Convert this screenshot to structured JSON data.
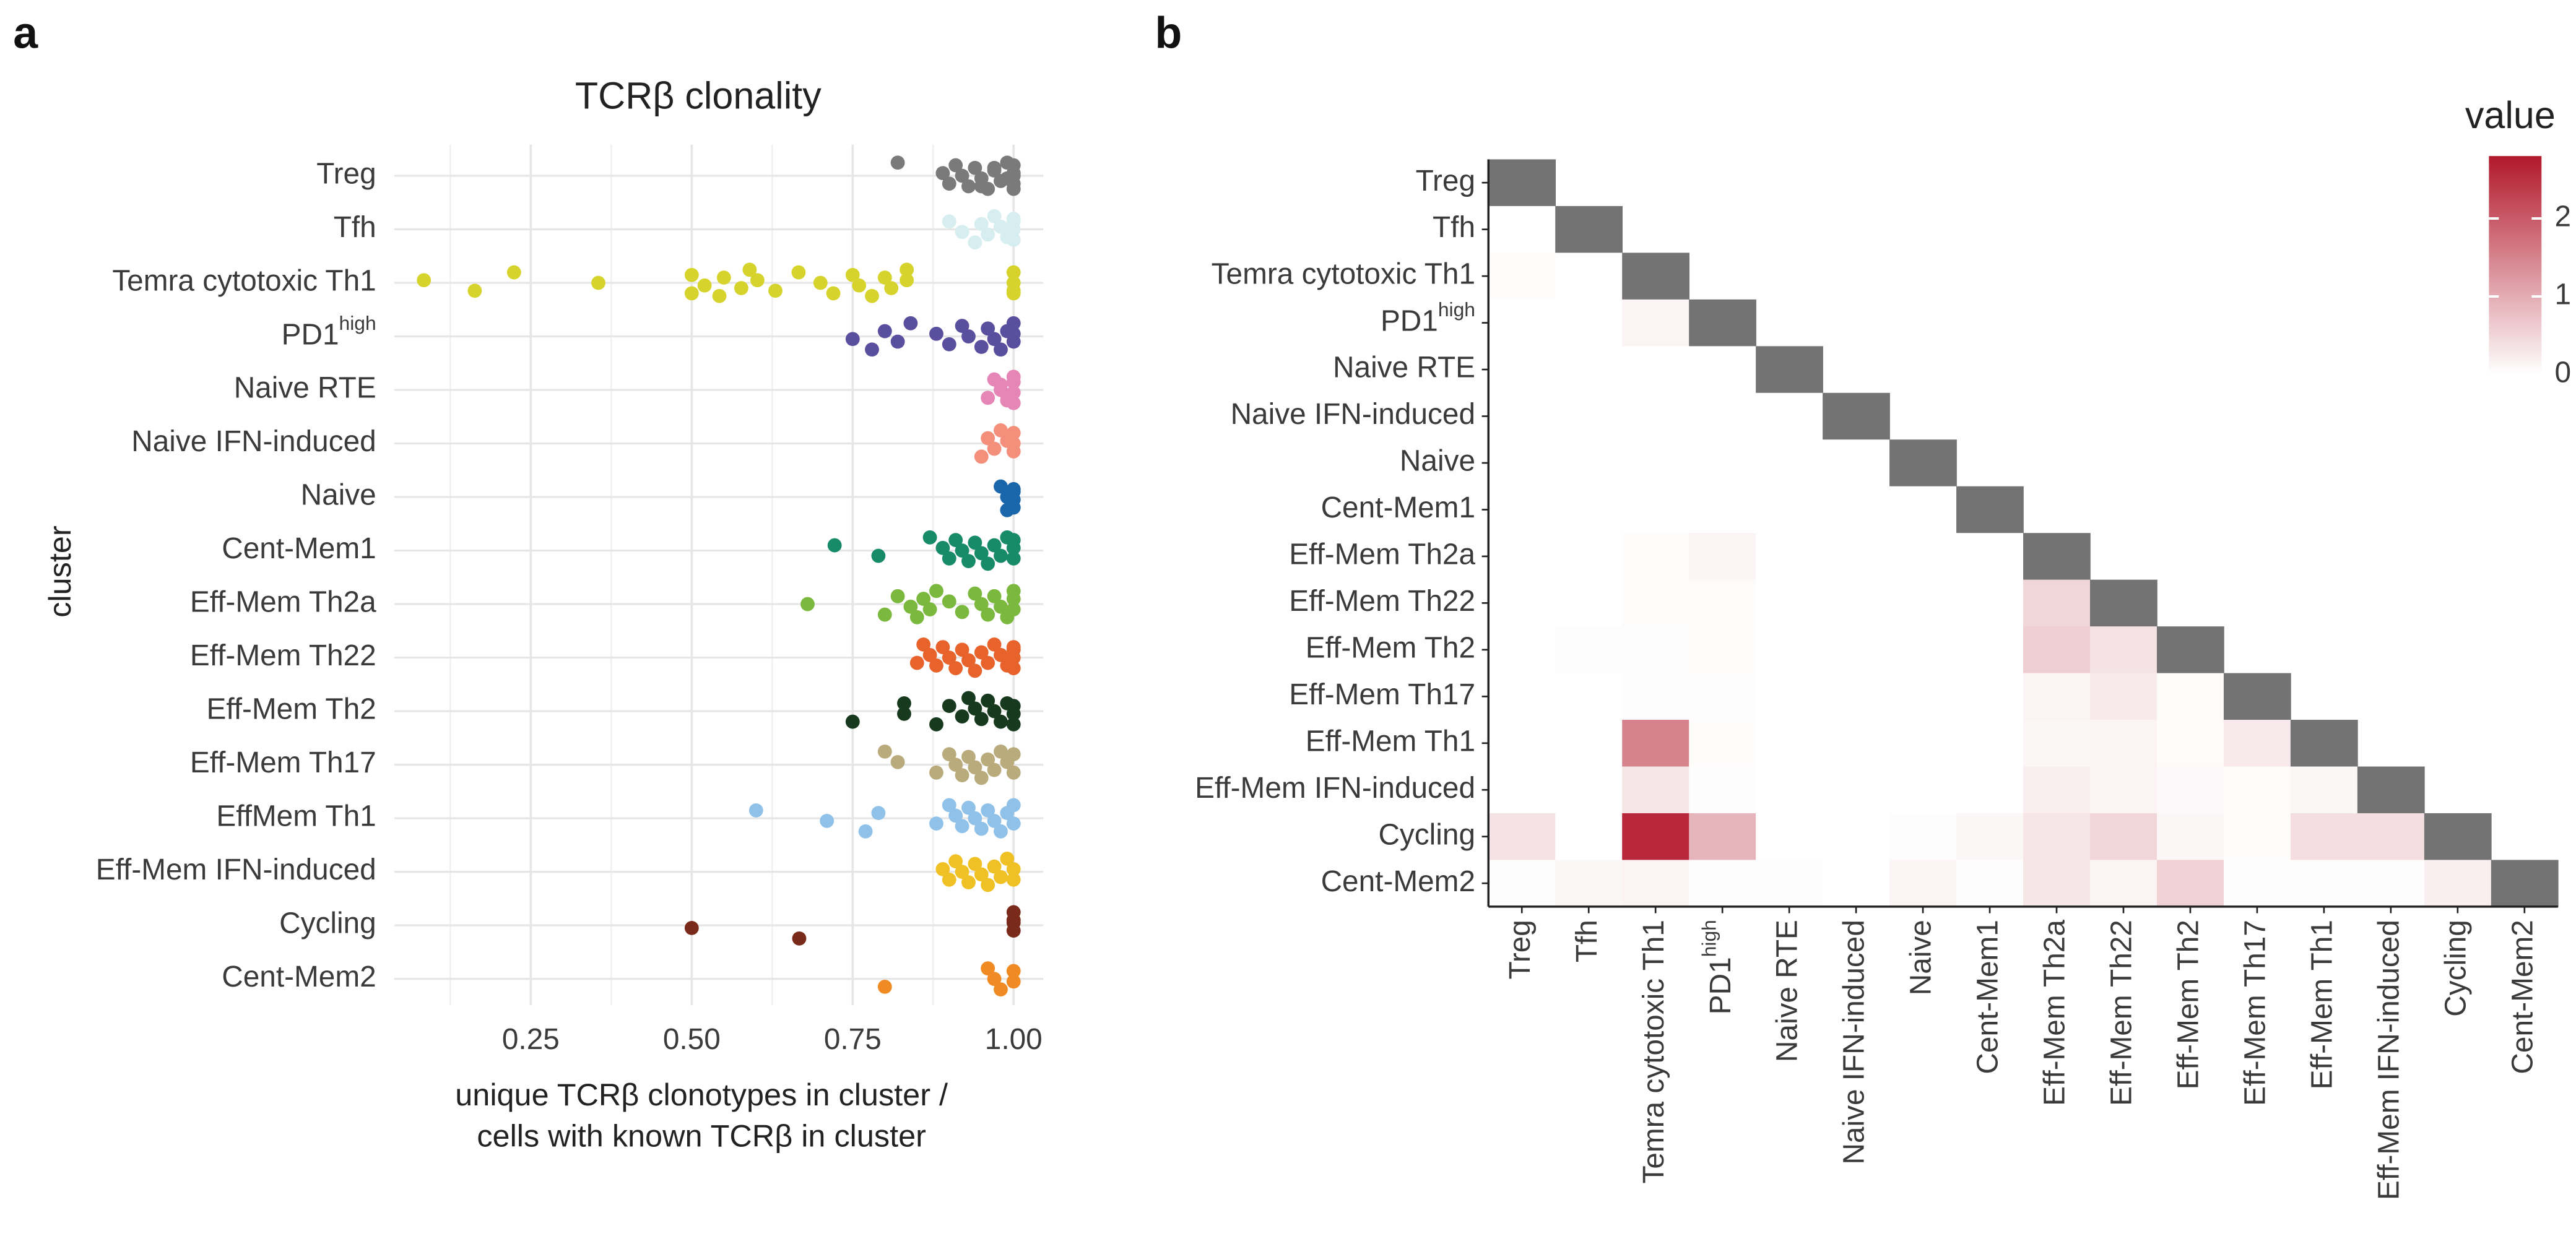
{
  "chart_data": [
    {
      "type": "strip",
      "panel": "a",
      "title": "TCRβ clonality",
      "ylabel": "cluster",
      "xlabel": [
        "unique TCRβ clonotypes in cluster /",
        "cells with known TCRβ in cluster"
      ],
      "categories": [
        "Treg",
        "Tfh",
        "Temra cytotoxic Th1",
        {
          "label": "PD1",
          "sup": "high"
        },
        "Naive RTE",
        "Naive IFN-induced",
        "Naive",
        "Cent-Mem1",
        "Eff-Mem Th2a",
        "Eff-Mem Th22",
        "Eff-Mem Th2",
        "Eff-Mem Th17",
        "EffMem Th1",
        "Eff-Mem IFN-induced",
        "Cycling",
        "Cent-Mem2"
      ],
      "colors": [
        "#7a7a7a",
        "#d6eef0",
        "#d6d42c",
        "#5a4f9e",
        "#e586b6",
        "#f38f7a",
        "#1a66ab",
        "#178a68",
        "#7bb83e",
        "#e8622c",
        "#173a1f",
        "#b9ab7c",
        "#8fc1e9",
        "#f0c125",
        "#7a2a1a",
        "#f08a22"
      ],
      "values": [
        [
          0.82,
          0.89,
          0.9,
          0.91,
          0.92,
          0.93,
          0.94,
          0.95,
          0.96,
          0.97,
          0.98,
          0.99,
          1,
          1,
          1,
          1,
          0.95,
          0.97,
          0.99,
          1
        ],
        [
          0.9,
          0.92,
          0.94,
          0.95,
          0.96,
          0.97,
          0.98,
          0.99,
          1,
          1,
          1,
          1
        ],
        [
          0.084,
          0.163,
          0.224,
          0.355,
          0.5,
          0.5,
          0.52,
          0.543,
          0.55,
          0.577,
          0.59,
          0.602,
          0.63,
          0.666,
          0.7,
          0.72,
          0.75,
          0.76,
          0.78,
          0.8,
          0.81,
          0.834,
          0.834,
          1,
          1,
          1,
          1
        ],
        [
          0.75,
          0.78,
          0.8,
          0.82,
          0.84,
          0.88,
          0.9,
          0.92,
          0.93,
          0.95,
          0.96,
          0.97,
          0.98,
          0.99,
          1,
          1,
          1
        ],
        [
          0.96,
          0.97,
          0.98,
          0.99,
          1,
          1,
          1,
          0.98,
          0.99,
          1
        ],
        [
          0.95,
          0.96,
          0.97,
          0.98,
          0.99,
          1,
          1,
          1
        ],
        [
          0.98,
          0.99,
          1,
          1,
          1,
          0.99,
          1
        ],
        [
          0.722,
          0.79,
          0.87,
          0.89,
          0.9,
          0.91,
          0.92,
          0.93,
          0.94,
          0.95,
          0.96,
          0.97,
          0.98,
          0.99,
          1,
          1,
          1
        ],
        [
          0.68,
          0.8,
          0.82,
          0.84,
          0.85,
          0.86,
          0.87,
          0.88,
          0.9,
          0.92,
          0.94,
          0.95,
          0.96,
          0.97,
          0.98,
          0.99,
          1,
          1,
          1
        ],
        [
          0.85,
          0.86,
          0.87,
          0.88,
          0.89,
          0.9,
          0.91,
          0.92,
          0.93,
          0.94,
          0.95,
          0.96,
          0.97,
          0.98,
          0.99,
          1,
          1,
          1,
          1
        ],
        [
          0.75,
          0.83,
          0.83,
          0.88,
          0.9,
          0.92,
          0.93,
          0.94,
          0.95,
          0.96,
          0.97,
          0.98,
          0.99,
          1,
          1,
          1
        ],
        [
          0.8,
          0.82,
          0.88,
          0.9,
          0.91,
          0.92,
          0.93,
          0.94,
          0.95,
          0.96,
          0.97,
          0.98,
          0.99,
          1,
          1
        ],
        [
          0.6,
          0.71,
          0.77,
          0.79,
          0.88,
          0.9,
          0.91,
          0.92,
          0.93,
          0.94,
          0.95,
          0.96,
          0.97,
          0.98,
          0.99,
          1,
          1
        ],
        [
          0.89,
          0.9,
          0.91,
          0.92,
          0.93,
          0.94,
          0.95,
          0.96,
          0.97,
          0.98,
          0.99,
          1,
          1
        ],
        [
          0.5,
          0.667,
          1,
          1,
          1,
          1
        ],
        [
          0.8,
          0.96,
          0.97,
          0.98,
          1,
          1
        ]
      ],
      "xlim": [
        0.038,
        1.046
      ],
      "xticks": [
        {
          "value": 0.25,
          "label": "0.25"
        },
        {
          "value": 0.5,
          "label": "0.50"
        },
        {
          "value": 0.75,
          "label": "0.75"
        },
        {
          "value": 1,
          "label": "1.00"
        }
      ],
      "minor_xticks": [
        0.125,
        0.375,
        0.625,
        0.875
      ],
      "grid": true
    },
    {
      "type": "heatmap",
      "panel": "b",
      "legend_title": "value",
      "categories": [
        "Treg",
        "Tfh",
        "Temra cytotoxic Th1",
        {
          "label": "PD1",
          "sup": "high"
        },
        "Naive RTE",
        "Naive IFN-induced",
        "Naive",
        "Cent-Mem1",
        "Eff-Mem Th2a",
        "Eff-Mem Th22",
        "Eff-Mem Th2",
        "Eff-Mem Th17",
        "Eff-Mem Th1",
        "Eff-Mem IFN-induced",
        "Cycling",
        "Cent-Mem2"
      ],
      "values": [
        [
          null,
          null,
          null,
          null,
          null,
          null,
          null,
          null,
          null,
          null,
          null,
          null,
          null,
          null,
          null,
          null
        ],
        [
          0,
          null,
          null,
          null,
          null,
          null,
          null,
          null,
          null,
          null,
          null,
          null,
          null,
          null,
          null,
          null
        ],
        [
          0.05,
          0,
          null,
          null,
          null,
          null,
          null,
          null,
          null,
          null,
          null,
          null,
          null,
          null,
          null,
          null
        ],
        [
          0,
          0,
          0.15,
          null,
          null,
          null,
          null,
          null,
          null,
          null,
          null,
          null,
          null,
          null,
          null,
          null
        ],
        [
          0,
          0,
          0,
          0,
          null,
          null,
          null,
          null,
          null,
          null,
          null,
          null,
          null,
          null,
          null,
          null
        ],
        [
          0,
          0,
          0,
          0,
          0,
          null,
          null,
          null,
          null,
          null,
          null,
          null,
          null,
          null,
          null,
          null
        ],
        [
          0,
          0,
          0,
          0,
          0,
          0,
          null,
          null,
          null,
          null,
          null,
          null,
          null,
          null,
          null,
          null
        ],
        [
          0,
          0,
          0,
          0,
          0,
          0,
          0,
          null,
          null,
          null,
          null,
          null,
          null,
          null,
          null,
          null
        ],
        [
          0,
          0,
          0.05,
          0.15,
          0,
          0,
          0,
          0,
          null,
          null,
          null,
          null,
          null,
          null,
          null,
          null
        ],
        [
          0,
          0,
          0.05,
          0.05,
          0,
          0,
          0,
          0,
          0.5,
          null,
          null,
          null,
          null,
          null,
          null,
          null
        ],
        [
          0,
          0.02,
          0.03,
          0.05,
          0,
          0,
          0,
          0,
          0.6,
          0.35,
          null,
          null,
          null,
          null,
          null,
          null
        ],
        [
          0,
          0,
          0.02,
          0.02,
          0,
          0,
          0,
          0,
          0.15,
          0.25,
          0.05,
          null,
          null,
          null,
          null,
          null
        ],
        [
          0,
          0,
          1.5,
          0.05,
          0,
          0,
          0,
          0,
          0.1,
          0.15,
          0.05,
          0.25,
          null,
          null,
          null,
          null
        ],
        [
          0,
          0,
          0.3,
          0.02,
          0,
          0,
          0,
          0,
          0.2,
          0.15,
          0.08,
          0.05,
          0.1,
          null,
          null,
          null
        ],
        [
          0.35,
          0,
          2.6,
          0.9,
          0,
          0,
          0.02,
          0.1,
          0.3,
          0.5,
          0.1,
          0.05,
          0.4,
          0.4,
          null,
          null
        ],
        [
          0.02,
          0.1,
          0.15,
          0.02,
          0.02,
          0,
          0.15,
          0.02,
          0.3,
          0.15,
          0.55,
          0.02,
          0.02,
          0.02,
          0.2,
          null
        ]
      ],
      "zlim": [
        0,
        2.8
      ],
      "zticks": [
        0,
        1,
        2
      ],
      "colors": [
        "#ffffff",
        "#b2182b"
      ],
      "diagonal_color": "#737373"
    }
  ]
}
